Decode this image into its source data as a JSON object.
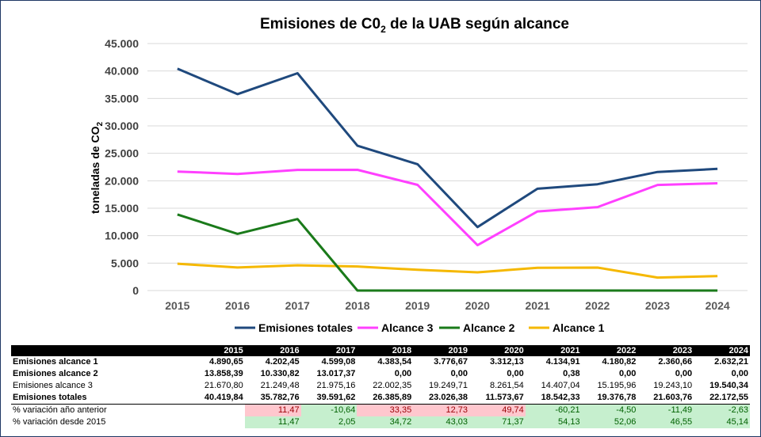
{
  "chart_data": {
    "type": "line",
    "title_main": "Emisiones de C0",
    "title_sub": "2",
    "title_rest": " de la UAB según alcance",
    "ylabel_main": "toneladas de CO",
    "ylabel_sub": "2",
    "ylim": [
      0,
      45000
    ],
    "y_ticks": [
      "0",
      "5.000",
      "10.000",
      "15.000",
      "20.000",
      "25.000",
      "30.000",
      "35.000",
      "40.000",
      "45.000"
    ],
    "categories": [
      "2015",
      "2016",
      "2017",
      "2018",
      "2019",
      "2020",
      "2021",
      "2022",
      "2023",
      "2024"
    ],
    "grid": true,
    "legend_position": "bottom",
    "series": [
      {
        "name": "Emisiones totales",
        "color": "#1f497d",
        "values": [
          40419.84,
          35782.76,
          39591.62,
          26385.89,
          23026.38,
          11573.67,
          18542.33,
          19376.78,
          21603.76,
          22172.55
        ]
      },
      {
        "name": "Alcance 3",
        "color": "#ff40ff",
        "values": [
          21670.8,
          21249.48,
          21975.16,
          22002.35,
          19249.71,
          8261.54,
          14407.04,
          15195.96,
          19243.1,
          19540.34
        ]
      },
      {
        "name": "Alcance  2",
        "color": "#1a7a1a",
        "values": [
          13858.39,
          10330.82,
          13017.37,
          0,
          0,
          0,
          0.38,
          0,
          0,
          0
        ]
      },
      {
        "name": "Alcance 1",
        "color": "#f5b800",
        "values": [
          4890.65,
          4202.45,
          4599.08,
          4383.54,
          3776.67,
          3312.13,
          4134.91,
          4180.82,
          2360.66,
          2632.21
        ]
      }
    ]
  },
  "table": {
    "header": [
      "",
      "2015",
      "2016",
      "2017",
      "2018",
      "2019",
      "2020",
      "2021",
      "2022",
      "2023",
      "2024"
    ],
    "rows": [
      {
        "label": "Emisiones alcance 1",
        "bold": true,
        "cells": [
          "4.890,65",
          "4.202,45",
          "4.599,08",
          "4.383,54",
          "3.776,67",
          "3.312,13",
          "4.134,91",
          "4.180,82",
          "2.360,66",
          "2.632,21"
        ]
      },
      {
        "label": "Emisiones alcance 2",
        "bold": true,
        "cells": [
          "13.858,39",
          "10.330,82",
          "13.017,37",
          "0,00",
          "0,00",
          "0,00",
          "0,38",
          "0,00",
          "0,00",
          "0,00"
        ]
      },
      {
        "label": "Emisiones alcance 3",
        "bold": false,
        "cells": [
          "21.670,80",
          "21.249,48",
          "21.975,16",
          "22.002,35",
          "19.249,71",
          "8.261,54",
          "14.407,04",
          "15.195,96",
          "19.243,10",
          "19.540,34"
        ]
      },
      {
        "label": "Emisiones totales",
        "bold": true,
        "cells": [
          "40.419,84",
          "35.782,76",
          "39.591,62",
          "26.385,89",
          "23.026,38",
          "11.573,67",
          "18.542,33",
          "19.376,78",
          "21.603,76",
          "22.172,55"
        ]
      },
      {
        "label": "% variación año anterior",
        "bold": false,
        "cells": [
          "",
          "11,47",
          "-10,64",
          "33,35",
          "12,73",
          "49,74",
          "-60,21",
          "-4,50",
          "-11,49",
          "-2,63"
        ]
      },
      {
        "label": "% variación desde 2015",
        "bold": false,
        "cells": [
          "",
          "11,47",
          "2,05",
          "34,72",
          "43,03",
          "71,37",
          "54,13",
          "52,06",
          "46,55",
          "45,14"
        ]
      }
    ]
  }
}
